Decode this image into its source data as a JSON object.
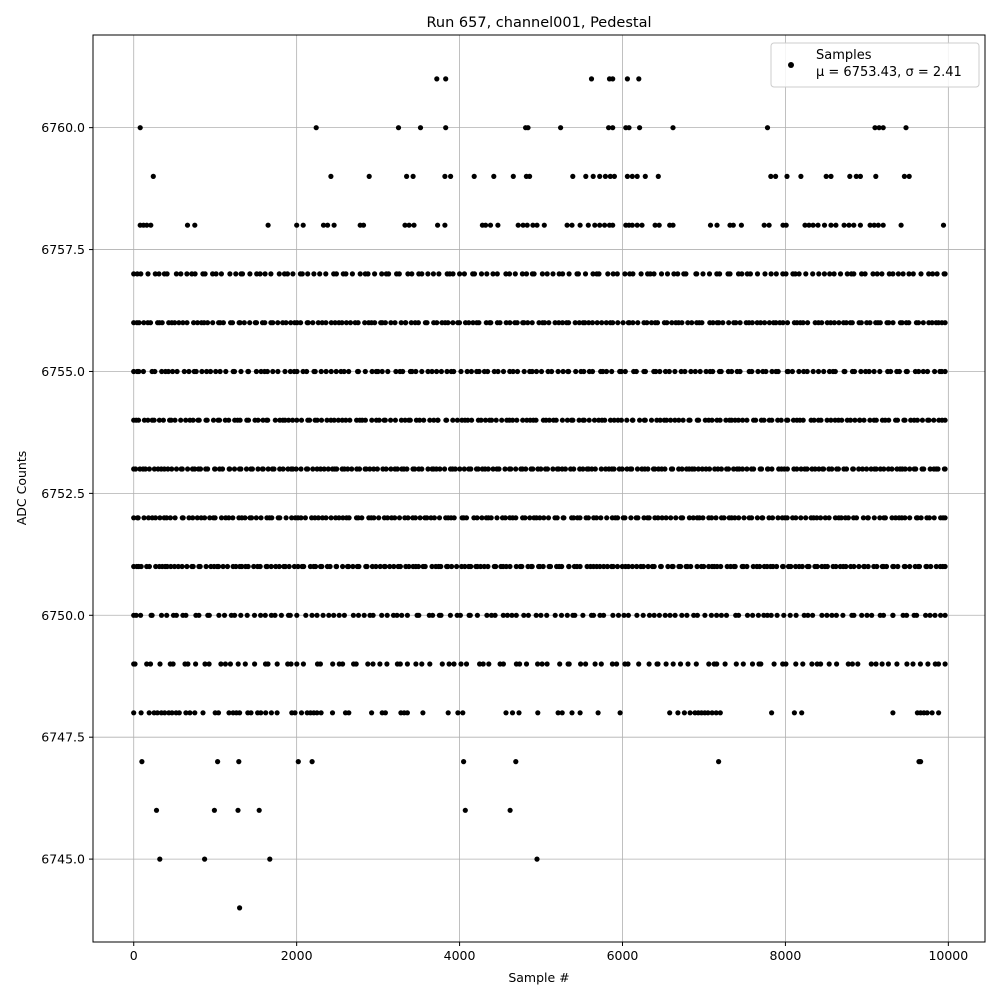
{
  "chart_data": {
    "type": "scatter",
    "title": "Run 657, channel001, Pedestal",
    "xlabel": "Sample #",
    "ylabel": "ADC Counts",
    "xlim": [
      -500,
      10450
    ],
    "ylim": [
      6743.3,
      6761.9
    ],
    "xticks": [
      0,
      2000,
      4000,
      6000,
      8000,
      10000
    ],
    "xtick_labels": [
      "0",
      "2000",
      "4000",
      "6000",
      "8000",
      "10000"
    ],
    "yticks": [
      6745.0,
      6747.5,
      6750.0,
      6752.5,
      6755.0,
      6757.5,
      6760.0
    ],
    "ytick_labels": [
      "6745.0",
      "6747.5",
      "6750.0",
      "6752.5",
      "6755.0",
      "6757.5",
      "6760.0"
    ],
    "grid": true,
    "legend": {
      "position": "top-right",
      "entries": [
        {
          "label": "Samples",
          "sublabel": "μ = 6753.43, σ = 2.41",
          "marker": "dot",
          "color": "#000000"
        }
      ]
    },
    "series": [
      {
        "name": "Samples",
        "color": "#000000",
        "levels": [
          {
            "y": 6761,
            "x": [
              3720,
              3830,
              5620,
              5840,
              5880,
              6060,
              6200
            ]
          },
          {
            "y": 6760,
            "x": [
              80,
              2240,
              3250,
              3520,
              3830,
              4810,
              4840,
              5240,
              5830,
              5880,
              6040,
              6080,
              6210,
              6620,
              7780,
              9100,
              9150,
              9200,
              9480
            ]
          },
          {
            "y": 6759,
            "x": [
              240,
              2420,
              2890,
              3350,
              3430,
              3820,
              3890,
              4180,
              4420,
              4660,
              4820,
              4860,
              5390,
              5550,
              5640,
              5720,
              5790,
              5850,
              5900,
              6060,
              6120,
              6180,
              6280,
              6440,
              7820,
              7880,
              8020,
              8190,
              8500,
              8560,
              8790,
              8870,
              8920,
              9110,
              9460,
              9520
            ]
          },
          {
            "y": 6758,
            "x": [
              80,
              120,
              160,
              210,
              660,
              750,
              1650,
              2000,
              2080,
              2330,
              2380,
              2460,
              2780,
              2820,
              3330,
              3380,
              3440,
              3730,
              3820,
              4280,
              4320,
              4380,
              4470,
              4720,
              4780,
              4830,
              4900,
              4950,
              5040,
              5320,
              5380,
              5480,
              5580,
              5660,
              5720,
              5780,
              5840,
              5880,
              6040,
              6080,
              6120,
              6180,
              6240,
              6400,
              6450,
              6580,
              6620,
              7080,
              7160,
              7320,
              7360,
              7460,
              7740,
              7800,
              7970,
              8010,
              8240,
              8290,
              8340,
              8400,
              8480,
              8560,
              8620,
              8720,
              8780,
              8840,
              8920,
              9040,
              9090,
              9140,
              9200,
              9420,
              9940
            ]
          },
          {
            "ranges": [
              [
                6757,
                0,
                9960,
                150
              ]
            ]
          },
          {
            "ranges": [
              [
                6756,
                0,
                9960,
                200
              ]
            ]
          },
          {
            "ranges": [
              [
                6755,
                0,
                9960,
                170
              ]
            ]
          },
          {
            "ranges": [
              [
                6754,
                0,
                9960,
                200
              ]
            ]
          },
          {
            "ranges": [
              [
                6753,
                0,
                9960,
                220
              ]
            ]
          },
          {
            "ranges": [
              [
                6752,
                0,
                9960,
                200
              ]
            ]
          },
          {
            "ranges": [
              [
                6751,
                0,
                9960,
                220
              ]
            ]
          },
          {
            "ranges": [
              [
                6750,
                0,
                9960,
                140
              ]
            ]
          },
          {
            "ranges": [
              [
                6749,
                0,
                9960,
                110
              ]
            ]
          },
          {
            "y": 6748,
            "x": [
              0,
              90,
              190,
              250,
              290,
              340,
              380,
              430,
              470,
              520,
              560,
              640,
              690,
              750,
              850,
              1000,
              1040,
              1170,
              1220,
              1260,
              1300,
              1400,
              1440,
              1520,
              1560,
              1620,
              1690,
              1760,
              1940,
              1980,
              2060,
              2130,
              2170,
              2210,
              2250,
              2300,
              2440,
              2600,
              2640,
              2920,
              3050,
              3090,
              3280,
              3320,
              3360,
              3550,
              3860,
              3980,
              4040,
              4570,
              4650,
              4730,
              4960,
              5210,
              5260,
              5380,
              5480,
              5700,
              5970,
              6580,
              6680,
              6760,
              6830,
              6890,
              6930,
              6970,
              7010,
              7050,
              7100,
              7150,
              7200,
              7830,
              8110,
              8200,
              9320,
              9620,
              9660,
              9700,
              9740,
              9800,
              9880
            ]
          },
          {
            "y": 6747,
            "x": [
              100,
              1030,
              1290,
              2020,
              2190,
              4050,
              4690,
              7180,
              9640,
              9660
            ]
          },
          {
            "y": 6746,
            "x": [
              280,
              990,
              1280,
              1540,
              4070,
              4620
            ]
          },
          {
            "y": 6745,
            "x": [
              320,
              870,
              1670,
              4950
            ]
          },
          {
            "y": 6744,
            "x": [
              1300
            ]
          }
        ]
      }
    ]
  }
}
